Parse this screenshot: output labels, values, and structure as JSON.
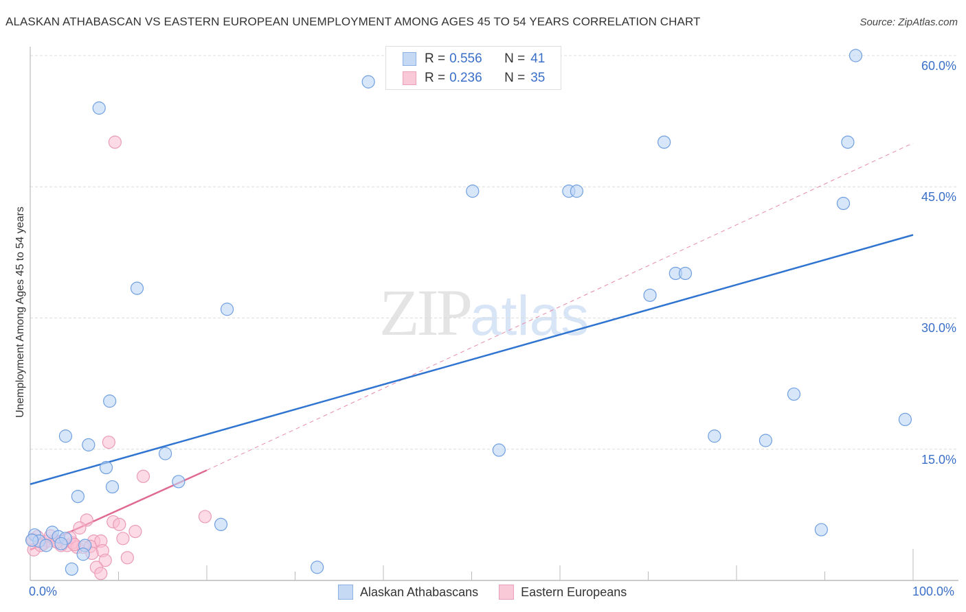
{
  "header": {
    "title": "ALASKAN ATHABASCAN VS EASTERN EUROPEAN UNEMPLOYMENT AMONG AGES 45 TO 54 YEARS CORRELATION CHART",
    "source": "Source: ZipAtlas.com"
  },
  "watermark": {
    "zip": "ZIP",
    "atlas": "atlas"
  },
  "legend": {
    "series": [
      {
        "name": "Alaskan Athabascans",
        "r_label": "R =",
        "r_value": "0.556",
        "n_label": "N =",
        "n_value": "41",
        "color": "#6f9fe0",
        "fill": "#c5d9f5"
      },
      {
        "name": "Eastern Europeans",
        "r_label": "R =",
        "r_value": "0.236",
        "n_label": "N =",
        "n_value": "35",
        "color": "#e88aa8",
        "fill": "#f9c9d8"
      }
    ]
  },
  "axes": {
    "y_label": "Unemployment Among Ages 45 to 54 years",
    "y_ticks": [
      "15.0%",
      "30.0%",
      "45.0%",
      "60.0%"
    ],
    "x_ticks": [
      "0.0%",
      "100.0%"
    ]
  },
  "chart_data": {
    "type": "scatter",
    "title": "ALASKAN ATHABASCAN VS EASTERN EUROPEAN UNEMPLOYMENT AMONG AGES 45 TO 54 YEARS CORRELATION CHART",
    "xlabel": "",
    "ylabel": "Unemployment Among Ages 45 to 54 years",
    "xlim": [
      0,
      100
    ],
    "ylim": [
      0,
      62
    ],
    "y_gridlines": [
      15,
      30,
      45,
      60
    ],
    "legend_position": "top-center and bottom",
    "series": [
      {
        "name": "Alaskan Athabascans",
        "color": "#3a78d4",
        "R": 0.556,
        "N": 41,
        "trendline": {
          "x": [
            0,
            100
          ],
          "y": [
            11.0,
            39.5
          ],
          "style": "solid"
        },
        "points": [
          [
            38.3,
            57.0
          ],
          [
            7.8,
            54.0
          ],
          [
            93.5,
            60.0
          ],
          [
            71.8,
            50.1
          ],
          [
            92.6,
            50.1
          ],
          [
            50.1,
            44.5
          ],
          [
            61.0,
            44.5
          ],
          [
            61.9,
            44.5
          ],
          [
            92.1,
            43.1
          ],
          [
            73.1,
            35.1
          ],
          [
            74.2,
            35.1
          ],
          [
            70.2,
            32.6
          ],
          [
            12.1,
            33.4
          ],
          [
            22.3,
            31.0
          ],
          [
            9.0,
            20.5
          ],
          [
            86.5,
            21.3
          ],
          [
            99.1,
            18.4
          ],
          [
            4.0,
            16.5
          ],
          [
            77.5,
            16.5
          ],
          [
            83.3,
            16.0
          ],
          [
            6.6,
            15.5
          ],
          [
            15.3,
            14.5
          ],
          [
            53.1,
            14.9
          ],
          [
            8.6,
            12.9
          ],
          [
            9.3,
            10.7
          ],
          [
            5.4,
            9.6
          ],
          [
            16.8,
            11.3
          ],
          [
            21.6,
            6.4
          ],
          [
            89.6,
            5.8
          ],
          [
            32.5,
            1.5
          ],
          [
            4.7,
            1.3
          ],
          [
            0.5,
            5.2
          ],
          [
            1.0,
            4.5
          ],
          [
            2.5,
            5.5
          ],
          [
            3.2,
            5.0
          ],
          [
            4.0,
            4.8
          ],
          [
            1.8,
            4.0
          ],
          [
            6.2,
            4.0
          ],
          [
            6.0,
            3.0
          ],
          [
            0.2,
            4.6
          ],
          [
            3.5,
            4.2
          ]
        ]
      },
      {
        "name": "Eastern Europeans",
        "color": "#e06a94",
        "R": 0.236,
        "N": 35,
        "trendline": {
          "x": [
            0,
            20
          ],
          "y": [
            3.5,
            12.6
          ],
          "style": "solid",
          "extended": {
            "x": [
              20,
              100
            ],
            "y": [
              12.6,
              50.0
            ],
            "style": "dashed"
          }
        },
        "points": [
          [
            9.6,
            50.1
          ],
          [
            8.9,
            15.8
          ],
          [
            12.8,
            11.9
          ],
          [
            19.8,
            7.3
          ],
          [
            6.4,
            6.9
          ],
          [
            9.4,
            6.7
          ],
          [
            10.1,
            6.4
          ],
          [
            5.6,
            6.0
          ],
          [
            11.9,
            5.6
          ],
          [
            7.2,
            4.5
          ],
          [
            10.5,
            4.8
          ],
          [
            8.0,
            4.5
          ],
          [
            0.3,
            4.7
          ],
          [
            0.8,
            5.0
          ],
          [
            1.5,
            4.2
          ],
          [
            2.0,
            4.5
          ],
          [
            2.8,
            4.6
          ],
          [
            3.5,
            4.0
          ],
          [
            4.2,
            4.0
          ],
          [
            4.8,
            4.3
          ],
          [
            5.3,
            3.8
          ],
          [
            6.0,
            3.8
          ],
          [
            6.8,
            3.9
          ],
          [
            0.4,
            3.5
          ],
          [
            1.2,
            4.0
          ],
          [
            8.2,
            3.4
          ],
          [
            8.5,
            2.3
          ],
          [
            11.0,
            2.6
          ],
          [
            7.5,
            1.5
          ],
          [
            8.0,
            0.8
          ],
          [
            2.3,
            5.1
          ],
          [
            3.0,
            4.4
          ],
          [
            4.5,
            4.9
          ],
          [
            5.0,
            4.1
          ],
          [
            7.0,
            3.1
          ]
        ]
      }
    ]
  }
}
